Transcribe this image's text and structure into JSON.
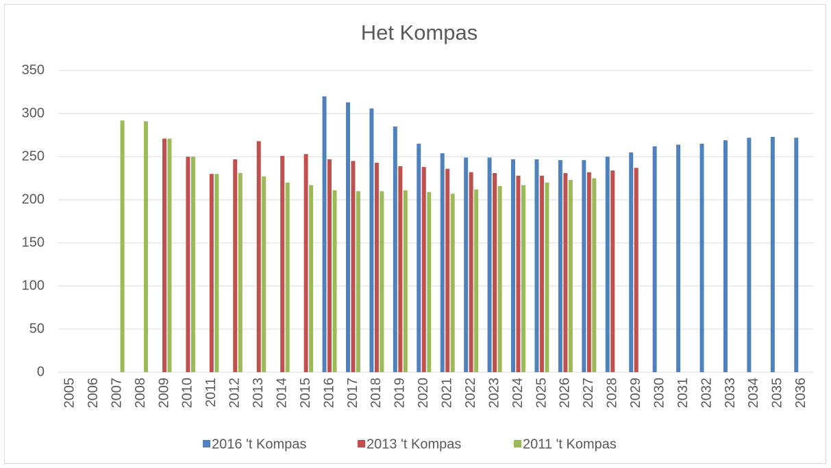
{
  "chart_data": {
    "type": "bar",
    "title": "Het Kompas",
    "categories": [
      "2005",
      "2006",
      "2007",
      "2008",
      "2009",
      "2010",
      "2011",
      "2012",
      "2013",
      "2014",
      "2015",
      "2016",
      "2017",
      "2018",
      "2019",
      "2020",
      "2021",
      "2022",
      "2023",
      "2024",
      "2025",
      "2026",
      "2027",
      "2028",
      "2029",
      "2030",
      "2031",
      "2032",
      "2033",
      "2034",
      "2035",
      "2036"
    ],
    "series": [
      {
        "name": "2016 't Kompas",
        "color": "#4f81bd",
        "values": [
          null,
          null,
          null,
          null,
          null,
          null,
          null,
          null,
          null,
          null,
          null,
          320,
          313,
          306,
          285,
          265,
          254,
          249,
          249,
          247,
          247,
          246,
          246,
          250,
          255,
          262,
          264,
          265,
          269,
          272,
          273,
          272
        ]
      },
      {
        "name": "2013 't Kompas",
        "color": "#c0504d",
        "values": [
          null,
          null,
          null,
          null,
          271,
          250,
          230,
          247,
          268,
          251,
          253,
          247,
          245,
          243,
          239,
          238,
          236,
          232,
          231,
          228,
          228,
          231,
          232,
          234,
          237,
          null,
          null,
          null,
          null,
          null,
          null,
          null
        ]
      },
      {
        "name": "2011 't Kompas",
        "color": "#9bbb59",
        "values": [
          null,
          null,
          292,
          291,
          271,
          250,
          230,
          231,
          227,
          220,
          217,
          211,
          210,
          210,
          211,
          209,
          207,
          212,
          216,
          217,
          220,
          223,
          225,
          null,
          null,
          null,
          null,
          null,
          null,
          null,
          null,
          null
        ]
      }
    ],
    "ylim": [
      0,
      350
    ],
    "yticks": [
      0,
      50,
      100,
      150,
      200,
      250,
      300,
      350
    ],
    "grid": true,
    "legend": "bottom"
  }
}
